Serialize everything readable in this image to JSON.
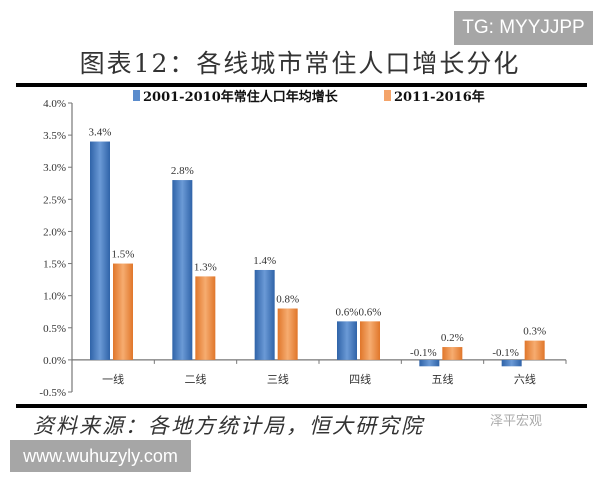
{
  "watermark_top": "TG: MYYJJPP",
  "watermark_bottom": "www.wuhuzyly.com",
  "logo_text": "泽平宏观",
  "source": "资料来源：各地方统计局，恒大研究院",
  "chart_data": {
    "type": "bar",
    "title": "图表12：各线城市常住人口增长分化",
    "categories": [
      "一线",
      "二线",
      "三线",
      "四线",
      "五线",
      "六线"
    ],
    "series": [
      {
        "name": "2001-2010年常住人口年均增长",
        "color": "#3f74b8",
        "values": [
          3.4,
          2.8,
          1.4,
          0.6,
          -0.1,
          -0.1
        ],
        "labels": [
          "3.4%",
          "2.8%",
          "1.4%",
          "0.6%",
          "-0.1%",
          "-0.1%"
        ]
      },
      {
        "name": "2011-2016年",
        "color": "#ef8a3c",
        "values": [
          1.5,
          1.3,
          0.8,
          0.6,
          0.2,
          0.3
        ],
        "labels": [
          "1.5%",
          "1.3%",
          "0.8%",
          "0.6%",
          "0.2%",
          "0.3%"
        ]
      }
    ],
    "ylim": [
      -0.5,
      4.0
    ],
    "yticks": [
      "-0.5%",
      "0.0%",
      "0.5%",
      "1.0%",
      "1.5%",
      "2.0%",
      "2.5%",
      "3.0%",
      "3.5%",
      "4.0%"
    ],
    "legend": "top",
    "grid": false
  }
}
